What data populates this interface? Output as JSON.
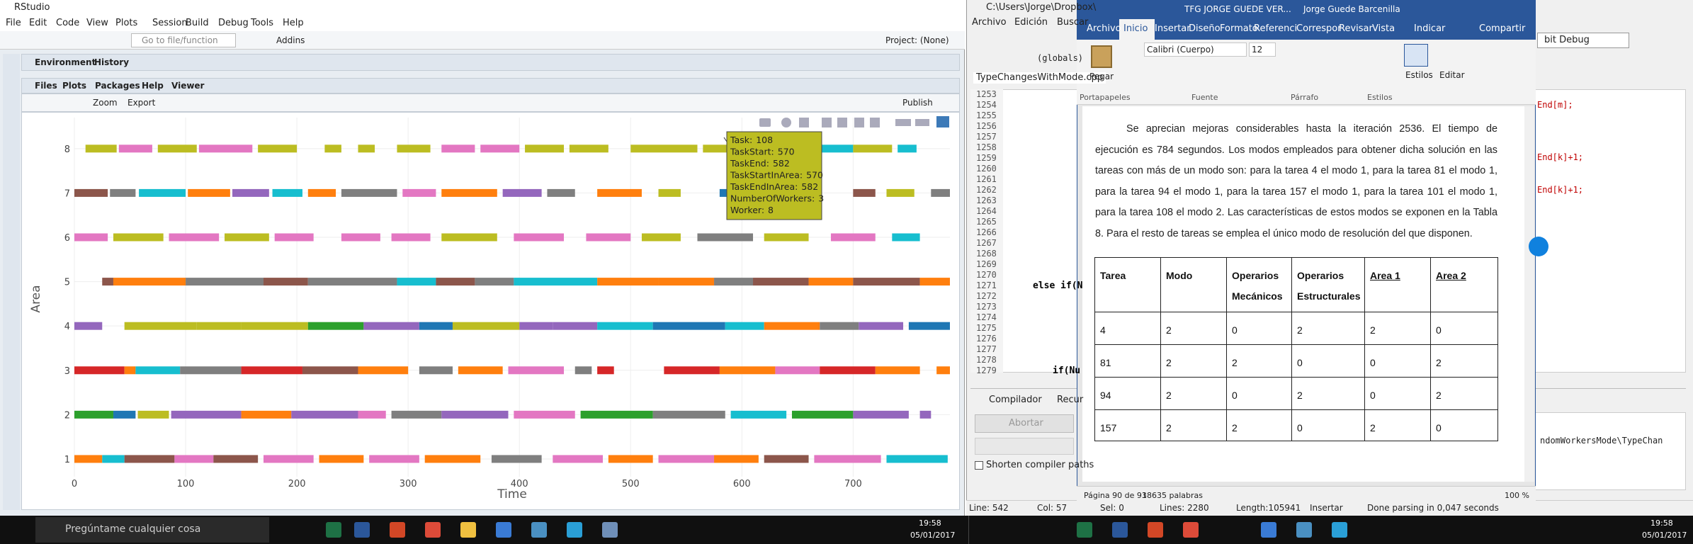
{
  "rstudio": {
    "title": "RStudio",
    "menu": [
      "File",
      "Edit",
      "Code",
      "View",
      "Plots",
      "Session",
      "Build",
      "Debug",
      "Tools",
      "Help"
    ],
    "goto": "Go to file/function",
    "addins": "Addins",
    "project": "Project: (None)",
    "top_tabs": [
      "Environment",
      "History"
    ],
    "tabs": [
      "Files",
      "Plots",
      "Packages",
      "Help",
      "Viewer"
    ],
    "zoom": "Zoom",
    "export": "Export",
    "publish": "Publish"
  },
  "chart_data": {
    "type": "gantt",
    "xlabel": "Time",
    "ylabel": "Area",
    "xlim": [
      0,
      787
    ],
    "ylim": [
      0.6,
      8.7
    ],
    "xticks": [
      0,
      100,
      200,
      300,
      400,
      500,
      600,
      700
    ],
    "yticks": [
      1,
      2,
      3,
      4,
      5,
      6,
      7,
      8
    ],
    "grid": true,
    "rows": [
      {
        "area": 8,
        "segments": [
          {
            "start": 10,
            "end": 38,
            "color": "#bcbd22"
          },
          {
            "start": 40,
            "end": 70,
            "color": "#e377c2"
          },
          {
            "start": 75,
            "end": 110,
            "color": "#bcbd22"
          },
          {
            "start": 112,
            "end": 160,
            "color": "#e377c2"
          },
          {
            "start": 165,
            "end": 200,
            "color": "#bcbd22"
          },
          {
            "start": 225,
            "end": 240,
            "color": "#bcbd22"
          },
          {
            "start": 255,
            "end": 270,
            "color": "#bcbd22"
          },
          {
            "start": 290,
            "end": 320,
            "color": "#bcbd22"
          },
          {
            "start": 330,
            "end": 360,
            "color": "#e377c2"
          },
          {
            "start": 365,
            "end": 400,
            "color": "#e377c2"
          },
          {
            "start": 405,
            "end": 440,
            "color": "#bcbd22"
          },
          {
            "start": 445,
            "end": 480,
            "color": "#bcbd22"
          },
          {
            "start": 500,
            "end": 560,
            "color": "#bcbd22"
          },
          {
            "start": 565,
            "end": 598,
            "color": "#bcbd22"
          },
          {
            "start": 660,
            "end": 700,
            "color": "#17becf"
          },
          {
            "start": 700,
            "end": 735,
            "color": "#bcbd22"
          },
          {
            "start": 740,
            "end": 757,
            "color": "#17becf"
          }
        ]
      },
      {
        "area": 7,
        "segments": [
          {
            "start": 0,
            "end": 30,
            "color": "#8c564b"
          },
          {
            "start": 32,
            "end": 55,
            "color": "#7f7f7f"
          },
          {
            "start": 58,
            "end": 100,
            "color": "#17becf"
          },
          {
            "start": 102,
            "end": 140,
            "color": "#ff7f0e"
          },
          {
            "start": 142,
            "end": 175,
            "color": "#9467bd"
          },
          {
            "start": 178,
            "end": 205,
            "color": "#17becf"
          },
          {
            "start": 210,
            "end": 235,
            "color": "#ff7f0e"
          },
          {
            "start": 240,
            "end": 290,
            "color": "#7f7f7f"
          },
          {
            "start": 295,
            "end": 325,
            "color": "#e377c2"
          },
          {
            "start": 330,
            "end": 380,
            "color": "#ff7f0e"
          },
          {
            "start": 385,
            "end": 420,
            "color": "#9467bd"
          },
          {
            "start": 425,
            "end": 450,
            "color": "#7f7f7f"
          },
          {
            "start": 470,
            "end": 510,
            "color": "#ff7f0e"
          },
          {
            "start": 525,
            "end": 545,
            "color": "#bcbd22"
          },
          {
            "start": 580,
            "end": 615,
            "color": "#1f77b4"
          },
          {
            "start": 620,
            "end": 660,
            "color": "#ff7f0e"
          },
          {
            "start": 700,
            "end": 720,
            "color": "#8c564b"
          },
          {
            "start": 730,
            "end": 755,
            "color": "#bcbd22"
          },
          {
            "start": 770,
            "end": 787,
            "color": "#7f7f7f"
          }
        ]
      },
      {
        "area": 6,
        "segments": [
          {
            "start": 0,
            "end": 30,
            "color": "#e377c2"
          },
          {
            "start": 35,
            "end": 80,
            "color": "#bcbd22"
          },
          {
            "start": 85,
            "end": 130,
            "color": "#e377c2"
          },
          {
            "start": 135,
            "end": 175,
            "color": "#bcbd22"
          },
          {
            "start": 180,
            "end": 215,
            "color": "#e377c2"
          },
          {
            "start": 240,
            "end": 275,
            "color": "#e377c2"
          },
          {
            "start": 285,
            "end": 320,
            "color": "#e377c2"
          },
          {
            "start": 330,
            "end": 380,
            "color": "#bcbd22"
          },
          {
            "start": 395,
            "end": 440,
            "color": "#e377c2"
          },
          {
            "start": 460,
            "end": 500,
            "color": "#e377c2"
          },
          {
            "start": 510,
            "end": 545,
            "color": "#bcbd22"
          },
          {
            "start": 560,
            "end": 610,
            "color": "#7f7f7f"
          },
          {
            "start": 620,
            "end": 660,
            "color": "#bcbd22"
          },
          {
            "start": 680,
            "end": 720,
            "color": "#e377c2"
          },
          {
            "start": 735,
            "end": 760,
            "color": "#17becf"
          }
        ]
      },
      {
        "area": 5,
        "segments": [
          {
            "start": 25,
            "end": 35,
            "color": "#8c564b"
          },
          {
            "start": 35,
            "end": 100,
            "color": "#ff7f0e"
          },
          {
            "start": 100,
            "end": 170,
            "color": "#7f7f7f"
          },
          {
            "start": 170,
            "end": 210,
            "color": "#8c564b"
          },
          {
            "start": 210,
            "end": 290,
            "color": "#7f7f7f"
          },
          {
            "start": 290,
            "end": 325,
            "color": "#17becf"
          },
          {
            "start": 325,
            "end": 360,
            "color": "#8c564b"
          },
          {
            "start": 360,
            "end": 395,
            "color": "#7f7f7f"
          },
          {
            "start": 395,
            "end": 470,
            "color": "#17becf"
          },
          {
            "start": 470,
            "end": 525,
            "color": "#ff7f0e"
          },
          {
            "start": 525,
            "end": 575,
            "color": "#ff7f0e"
          },
          {
            "start": 575,
            "end": 610,
            "color": "#7f7f7f"
          },
          {
            "start": 610,
            "end": 660,
            "color": "#8c564b"
          },
          {
            "start": 660,
            "end": 700,
            "color": "#ff7f0e"
          },
          {
            "start": 700,
            "end": 760,
            "color": "#8c564b"
          },
          {
            "start": 760,
            "end": 787,
            "color": "#ff7f0e"
          }
        ]
      },
      {
        "area": 4,
        "segments": [
          {
            "start": 0,
            "end": 25,
            "color": "#9467bd"
          },
          {
            "start": 45,
            "end": 110,
            "color": "#bcbd22"
          },
          {
            "start": 110,
            "end": 150,
            "color": "#bcbd22"
          },
          {
            "start": 150,
            "end": 210,
            "color": "#bcbd22"
          },
          {
            "start": 210,
            "end": 260,
            "color": "#2ca02c"
          },
          {
            "start": 260,
            "end": 310,
            "color": "#9467bd"
          },
          {
            "start": 310,
            "end": 340,
            "color": "#1f77b4"
          },
          {
            "start": 340,
            "end": 400,
            "color": "#bcbd22"
          },
          {
            "start": 400,
            "end": 430,
            "color": "#9467bd"
          },
          {
            "start": 430,
            "end": 470,
            "color": "#9467bd"
          },
          {
            "start": 470,
            "end": 520,
            "color": "#17becf"
          },
          {
            "start": 520,
            "end": 585,
            "color": "#1f77b4"
          },
          {
            "start": 585,
            "end": 620,
            "color": "#17becf"
          },
          {
            "start": 620,
            "end": 670,
            "color": "#ff7f0e"
          },
          {
            "start": 670,
            "end": 705,
            "color": "#7f7f7f"
          },
          {
            "start": 705,
            "end": 745,
            "color": "#9467bd"
          },
          {
            "start": 750,
            "end": 787,
            "color": "#1f77b4"
          }
        ]
      },
      {
        "area": 3,
        "segments": [
          {
            "start": 0,
            "end": 45,
            "color": "#d62728"
          },
          {
            "start": 45,
            "end": 55,
            "color": "#ff7f0e"
          },
          {
            "start": 55,
            "end": 95,
            "color": "#17becf"
          },
          {
            "start": 95,
            "end": 150,
            "color": "#7f7f7f"
          },
          {
            "start": 150,
            "end": 205,
            "color": "#d62728"
          },
          {
            "start": 205,
            "end": 255,
            "color": "#8c564b"
          },
          {
            "start": 255,
            "end": 300,
            "color": "#ff7f0e"
          },
          {
            "start": 310,
            "end": 340,
            "color": "#7f7f7f"
          },
          {
            "start": 345,
            "end": 385,
            "color": "#ff7f0e"
          },
          {
            "start": 390,
            "end": 440,
            "color": "#e377c2"
          },
          {
            "start": 450,
            "end": 465,
            "color": "#7f7f7f"
          },
          {
            "start": 470,
            "end": 485,
            "color": "#d62728"
          },
          {
            "start": 530,
            "end": 580,
            "color": "#d62728"
          },
          {
            "start": 580,
            "end": 630,
            "color": "#ff7f0e"
          },
          {
            "start": 630,
            "end": 670,
            "color": "#e377c2"
          },
          {
            "start": 670,
            "end": 720,
            "color": "#d62728"
          },
          {
            "start": 720,
            "end": 760,
            "color": "#ff7f0e"
          },
          {
            "start": 775,
            "end": 787,
            "color": "#ff7f0e"
          }
        ]
      },
      {
        "area": 2,
        "segments": [
          {
            "start": 0,
            "end": 35,
            "color": "#2ca02c"
          },
          {
            "start": 35,
            "end": 55,
            "color": "#1f77b4"
          },
          {
            "start": 57,
            "end": 85,
            "color": "#bcbd22"
          },
          {
            "start": 87,
            "end": 150,
            "color": "#9467bd"
          },
          {
            "start": 150,
            "end": 195,
            "color": "#ff7f0e"
          },
          {
            "start": 195,
            "end": 255,
            "color": "#9467bd"
          },
          {
            "start": 255,
            "end": 280,
            "color": "#e377c2"
          },
          {
            "start": 285,
            "end": 330,
            "color": "#7f7f7f"
          },
          {
            "start": 330,
            "end": 390,
            "color": "#9467bd"
          },
          {
            "start": 395,
            "end": 450,
            "color": "#e377c2"
          },
          {
            "start": 455,
            "end": 520,
            "color": "#2ca02c"
          },
          {
            "start": 520,
            "end": 585,
            "color": "#7f7f7f"
          },
          {
            "start": 590,
            "end": 640,
            "color": "#17becf"
          },
          {
            "start": 645,
            "end": 700,
            "color": "#2ca02c"
          },
          {
            "start": 700,
            "end": 750,
            "color": "#9467bd"
          },
          {
            "start": 760,
            "end": 770,
            "color": "#9467bd"
          }
        ]
      },
      {
        "area": 1,
        "segments": [
          {
            "start": 0,
            "end": 25,
            "color": "#ff7f0e"
          },
          {
            "start": 25,
            "end": 45,
            "color": "#17becf"
          },
          {
            "start": 45,
            "end": 90,
            "color": "#8c564b"
          },
          {
            "start": 90,
            "end": 125,
            "color": "#e377c2"
          },
          {
            "start": 125,
            "end": 165,
            "color": "#8c564b"
          },
          {
            "start": 170,
            "end": 215,
            "color": "#e377c2"
          },
          {
            "start": 220,
            "end": 260,
            "color": "#ff7f0e"
          },
          {
            "start": 265,
            "end": 310,
            "color": "#e377c2"
          },
          {
            "start": 315,
            "end": 365,
            "color": "#ff7f0e"
          },
          {
            "start": 375,
            "end": 420,
            "color": "#7f7f7f"
          },
          {
            "start": 430,
            "end": 475,
            "color": "#e377c2"
          },
          {
            "start": 480,
            "end": 520,
            "color": "#ff7f0e"
          },
          {
            "start": 525,
            "end": 575,
            "color": "#e377c2"
          },
          {
            "start": 575,
            "end": 615,
            "color": "#ff7f0e"
          },
          {
            "start": 620,
            "end": 660,
            "color": "#8c564b"
          },
          {
            "start": 665,
            "end": 725,
            "color": "#e377c2"
          },
          {
            "start": 730,
            "end": 785,
            "color": "#17becf"
          }
        ]
      }
    ],
    "tooltip": {
      "color": "#bcbd22",
      "items": [
        {
          "label": "Task:",
          "value": 108
        },
        {
          "label": "TaskStart:",
          "value": 570
        },
        {
          "label": "TaskEnd:",
          "value": 582
        },
        {
          "label": "TaskStartInArea:",
          "value": 570
        },
        {
          "label": "TaskEndInArea:",
          "value": 582
        },
        {
          "label": "NumberOfWorkers:",
          "value": 3
        },
        {
          "label": "Worker:",
          "value": 8
        }
      ]
    }
  },
  "editor": {
    "path": "C:\\Users\\Jorge\\Dropbox\\",
    "menu": [
      "Archivo",
      "Edición",
      "Buscar"
    ],
    "scope": "(globals)",
    "build": "bit Debug",
    "file_tab": "TypeChangesWithMode.cpp",
    "line_numbers": [
      1253,
      1254,
      1255,
      1256,
      1257,
      1258,
      1259,
      1260,
      1261,
      1262,
      1263,
      1264,
      1265,
      1266,
      1267,
      1268,
      1269,
      1270,
      1271,
      1272,
      1273,
      1274,
      1275,
      1276,
      1277,
      1278,
      1279
    ],
    "code": [
      "else if(N",
      "if(Nu"
    ],
    "code_right": [
      "End[m];",
      "End[k]+1;",
      "End[k]+1;"
    ],
    "panel_tabs": [
      "Compilador",
      "Recur"
    ],
    "abort": "Abortar",
    "shorten": "Shorten compiler paths",
    "output": "ndomWorkersMode\\TypeChan",
    "status": [
      "Line: 542",
      "Col: 57",
      "Sel: 0",
      "Lines: 2280",
      "Length:105941",
      "Insertar",
      "Done parsing in 0,047 seconds"
    ]
  },
  "word": {
    "title": "TFG JORGE GUEDE VER...",
    "user": "Jorge Guede Barcenilla",
    "tabs": [
      "Archivo",
      "Inicio",
      "Insertar",
      "Diseño",
      "Formato",
      "Referenci",
      "Correspor",
      "Revisar",
      "Vista"
    ],
    "tell": "Indicar",
    "share": "Compartir",
    "paste": "Pegar",
    "font": "Calibri (Cuerpo)",
    "size": 12,
    "groups": [
      "Portapapeles",
      "Fuente",
      "Párrafo",
      "Estilos"
    ],
    "styles": "Estilos",
    "edit": "Editar",
    "paragraph": "Se aprecian mejoras considerables hasta la iteración 2536. El tiempo de ejecución es 784 segundos. Los modos empleados para obtener dicha solución en las tareas con más de un modo son: para la tarea 4 el modo 1, para la tarea 81 el modo 1, para la tarea 94 el modo 1, para la tarea 157 el modo 1, para la tarea 101 el modo 1, para la tarea 108 el modo 2. Las características de estos modos se exponen en la Tabla 8. Para el resto de tareas se emplea el único modo de resolución del que disponen.",
    "table": {
      "header": [
        "Tarea",
        "Modo",
        "Operarios Mecánicos",
        "Operarios Estructurales",
        "Area 1",
        "Area 2"
      ],
      "rows": [
        [
          4,
          2,
          0,
          2,
          2,
          0
        ],
        [
          81,
          2,
          2,
          0,
          0,
          2
        ],
        [
          94,
          2,
          0,
          2,
          0,
          2
        ],
        [
          157,
          2,
          2,
          0,
          2,
          0
        ]
      ]
    },
    "status": {
      "page": "Página 90 de 93",
      "words": "18635 palabras",
      "zoom": "100 %"
    }
  },
  "taskbar": {
    "search": "Pregúntame cualquier cosa",
    "time": "19:58",
    "date": "05/01/2017"
  }
}
